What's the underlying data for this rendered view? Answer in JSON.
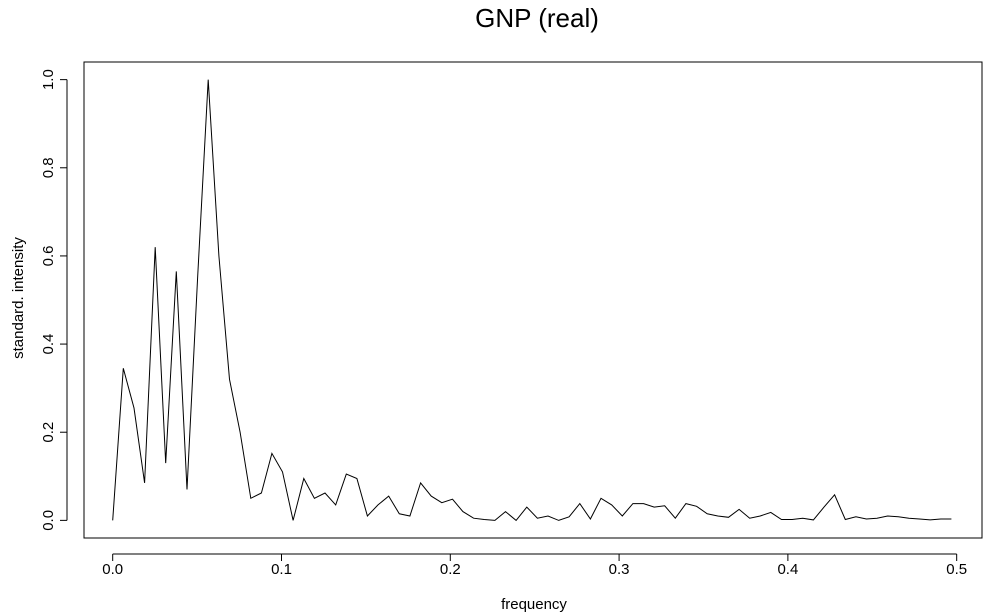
{
  "chart_data": {
    "type": "line",
    "title": "GNP (real)",
    "xlabel": "frequency",
    "ylabel": "standard. intensity",
    "xlim": [
      -0.017,
      0.515
    ],
    "ylim": [
      -0.04,
      1.04
    ],
    "xticks": [
      0.0,
      0.1,
      0.2,
      0.3,
      0.4,
      0.5
    ],
    "xtick_labels": [
      "0.0",
      "0.1",
      "0.2",
      "0.3",
      "0.4",
      "0.5"
    ],
    "yticks": [
      0.0,
      0.2,
      0.4,
      0.6,
      0.8,
      1.0
    ],
    "ytick_labels": [
      "0.0",
      "0.2",
      "0.4",
      "0.6",
      "0.8",
      "1.0"
    ],
    "grid": false,
    "line_color": "#000000",
    "series": [
      {
        "x": [
          0.0,
          0.0063,
          0.0126,
          0.0189,
          0.0252,
          0.0314,
          0.0377,
          0.044,
          0.0503,
          0.0566,
          0.0629,
          0.0692,
          0.0755,
          0.0818,
          0.0881,
          0.0943,
          0.1006,
          0.1069,
          0.1132,
          0.1195,
          0.1258,
          0.1321,
          0.1384,
          0.1447,
          0.1509,
          0.1572,
          0.1635,
          0.1698,
          0.1761,
          0.1824,
          0.1887,
          0.195,
          0.2013,
          0.2075,
          0.2138,
          0.2201,
          0.2264,
          0.2327,
          0.239,
          0.2453,
          0.2516,
          0.2579,
          0.2642,
          0.2704,
          0.2767,
          0.283,
          0.2893,
          0.2956,
          0.3019,
          0.3082,
          0.3145,
          0.3208,
          0.327,
          0.3333,
          0.3396,
          0.3459,
          0.3522,
          0.3585,
          0.3648,
          0.3711,
          0.3774,
          0.3836,
          0.3899,
          0.3962,
          0.4025,
          0.4088,
          0.4151,
          0.4214,
          0.4277,
          0.434,
          0.4403,
          0.4465,
          0.4528,
          0.4591,
          0.4654,
          0.4717,
          0.478,
          0.4843,
          0.4906,
          0.4969
        ],
        "y": [
          0.0,
          0.345,
          0.255,
          0.085,
          0.62,
          0.13,
          0.565,
          0.07,
          0.55,
          1.0,
          0.6,
          0.32,
          0.2,
          0.05,
          0.062,
          0.152,
          0.11,
          0.0,
          0.095,
          0.05,
          0.062,
          0.035,
          0.105,
          0.095,
          0.01,
          0.035,
          0.055,
          0.015,
          0.01,
          0.085,
          0.055,
          0.04,
          0.048,
          0.02,
          0.005,
          0.002,
          0.0,
          0.02,
          0.0,
          0.03,
          0.005,
          0.01,
          0.0,
          0.008,
          0.038,
          0.003,
          0.05,
          0.035,
          0.01,
          0.038,
          0.038,
          0.03,
          0.033,
          0.005,
          0.038,
          0.032,
          0.015,
          0.01,
          0.007,
          0.025,
          0.005,
          0.01,
          0.018,
          0.002,
          0.002,
          0.005,
          0.001,
          0.03,
          0.058,
          0.002,
          0.008,
          0.003,
          0.005,
          0.01,
          0.008,
          0.005,
          0.003,
          0.001,
          0.003,
          0.003
        ]
      }
    ]
  }
}
